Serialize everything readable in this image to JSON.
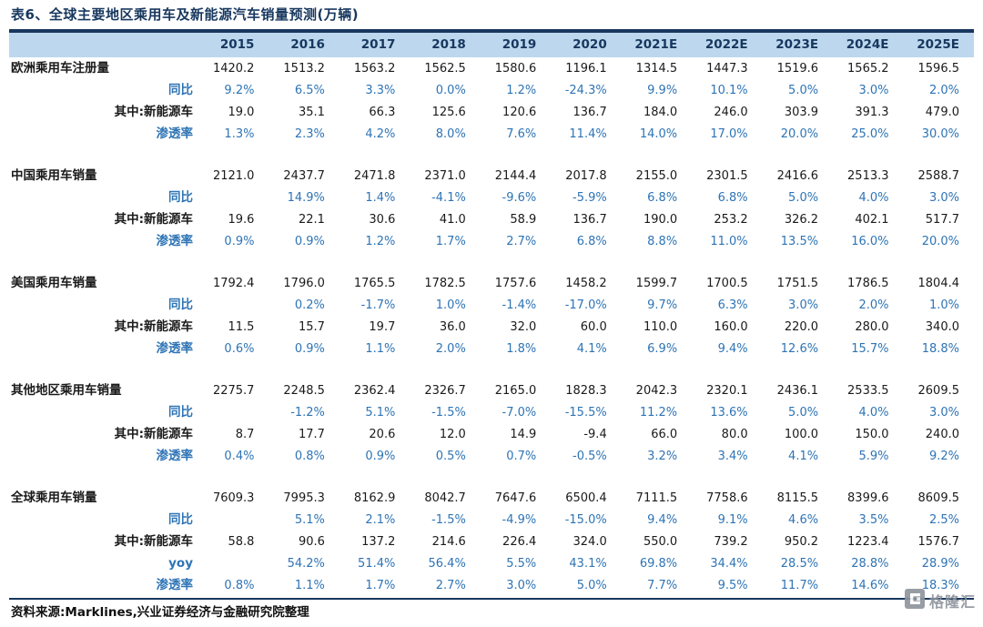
{
  "page": {
    "title": "表6、全球主要地区乘用车及新能源汽车销量预测(万辆)",
    "source_label": "资料来源:Marklines,兴业证券经济与金融研究院整理",
    "logo_text": "格隆汇"
  },
  "colors": {
    "navy": "#17375E",
    "header_bg": "#BDD7EE",
    "percent_blue": "#2E74B5",
    "logo_gray": "#8D939C"
  },
  "table": {
    "years": [
      "2015",
      "2016",
      "2017",
      "2018",
      "2019",
      "2020",
      "2021E",
      "2022E",
      "2023E",
      "2024E",
      "2025E"
    ],
    "groups": [
      {
        "rows": [
          {
            "label": "欧洲乘用车注册量",
            "style": "main",
            "values": [
              "1420.2",
              "1513.2",
              "1563.2",
              "1562.5",
              "1580.6",
              "1196.1",
              "1314.5",
              "1447.3",
              "1519.6",
              "1565.2",
              "1596.5"
            ]
          },
          {
            "label": "同比",
            "style": "pct",
            "values": [
              "9.2%",
              "6.5%",
              "3.3%",
              "0.0%",
              "1.2%",
              "-24.3%",
              "9.9%",
              "10.1%",
              "5.0%",
              "3.0%",
              "2.0%"
            ]
          },
          {
            "label": "其中:新能源车",
            "style": "sub",
            "values": [
              "19.0",
              "35.1",
              "66.3",
              "125.6",
              "120.6",
              "136.7",
              "184.0",
              "246.0",
              "303.9",
              "391.3",
              "479.0"
            ]
          },
          {
            "label": "渗透率",
            "style": "pct",
            "values": [
              "1.3%",
              "2.3%",
              "4.2%",
              "8.0%",
              "7.6%",
              "11.4%",
              "14.0%",
              "17.0%",
              "20.0%",
              "25.0%",
              "30.0%"
            ]
          }
        ]
      },
      {
        "rows": [
          {
            "label": "中国乘用车销量",
            "style": "main",
            "values": [
              "2121.0",
              "2437.7",
              "2471.8",
              "2371.0",
              "2144.4",
              "2017.8",
              "2155.0",
              "2301.5",
              "2416.6",
              "2513.3",
              "2588.7"
            ]
          },
          {
            "label": "同比",
            "style": "pct",
            "values": [
              "",
              "14.9%",
              "1.4%",
              "-4.1%",
              "-9.6%",
              "-5.9%",
              "6.8%",
              "6.8%",
              "5.0%",
              "4.0%",
              "3.0%"
            ]
          },
          {
            "label": "其中:新能源车",
            "style": "sub",
            "values": [
              "19.6",
              "22.1",
              "30.6",
              "41.0",
              "58.9",
              "136.7",
              "190.0",
              "253.2",
              "326.2",
              "402.1",
              "517.7"
            ]
          },
          {
            "label": "渗透率",
            "style": "pct",
            "values": [
              "0.9%",
              "0.9%",
              "1.2%",
              "1.7%",
              "2.7%",
              "6.8%",
              "8.8%",
              "11.0%",
              "13.5%",
              "16.0%",
              "20.0%"
            ]
          }
        ]
      },
      {
        "rows": [
          {
            "label": "美国乘用车销量",
            "style": "main",
            "values": [
              "1792.4",
              "1796.0",
              "1765.5",
              "1782.5",
              "1757.6",
              "1458.2",
              "1599.7",
              "1700.5",
              "1751.5",
              "1786.5",
              "1804.4"
            ]
          },
          {
            "label": "同比",
            "style": "pct",
            "values": [
              "",
              "0.2%",
              "-1.7%",
              "1.0%",
              "-1.4%",
              "-17.0%",
              "9.7%",
              "6.3%",
              "3.0%",
              "2.0%",
              "1.0%"
            ]
          },
          {
            "label": "其中:新能源车",
            "style": "sub",
            "values": [
              "11.5",
              "15.7",
              "19.7",
              "36.0",
              "32.0",
              "60.0",
              "110.0",
              "160.0",
              "220.0",
              "280.0",
              "340.0"
            ]
          },
          {
            "label": "渗透率",
            "style": "pct",
            "values": [
              "0.6%",
              "0.9%",
              "1.1%",
              "2.0%",
              "1.8%",
              "4.1%",
              "6.9%",
              "9.4%",
              "12.6%",
              "15.7%",
              "18.8%"
            ]
          }
        ]
      },
      {
        "rows": [
          {
            "label": "其他地区乘用车销量",
            "style": "main",
            "values": [
              "2275.7",
              "2248.5",
              "2362.4",
              "2326.7",
              "2165.0",
              "1828.3",
              "2042.3",
              "2320.1",
              "2436.1",
              "2533.5",
              "2609.5"
            ]
          },
          {
            "label": "同比",
            "style": "pct",
            "values": [
              "",
              "-1.2%",
              "5.1%",
              "-1.5%",
              "-7.0%",
              "-15.5%",
              "11.2%",
              "13.6%",
              "5.0%",
              "4.0%",
              "3.0%"
            ]
          },
          {
            "label": "其中:新能源车",
            "style": "sub",
            "values": [
              "8.7",
              "17.7",
              "20.6",
              "12.0",
              "14.9",
              "-9.4",
              "66.0",
              "80.0",
              "100.0",
              "150.0",
              "240.0"
            ]
          },
          {
            "label": "渗透率",
            "style": "pct",
            "values": [
              "0.4%",
              "0.8%",
              "0.9%",
              "0.5%",
              "0.7%",
              "-0.5%",
              "3.2%",
              "3.4%",
              "4.1%",
              "5.9%",
              "9.2%"
            ]
          }
        ]
      },
      {
        "rows": [
          {
            "label": "全球乘用车销量",
            "style": "main",
            "values": [
              "7609.3",
              "7995.3",
              "8162.9",
              "8042.7",
              "7647.6",
              "6500.4",
              "7111.5",
              "7758.6",
              "8115.5",
              "8399.6",
              "8609.5"
            ]
          },
          {
            "label": "同比",
            "style": "pct",
            "values": [
              "",
              "5.1%",
              "2.1%",
              "-1.5%",
              "-4.9%",
              "-15.0%",
              "9.4%",
              "9.1%",
              "4.6%",
              "3.5%",
              "2.5%"
            ]
          },
          {
            "label": "其中:新能源车",
            "style": "sub",
            "values": [
              "58.8",
              "90.6",
              "137.2",
              "214.6",
              "226.4",
              "324.0",
              "550.0",
              "739.2",
              "950.2",
              "1223.4",
              "1576.7"
            ]
          },
          {
            "label": "yoy",
            "style": "pct",
            "values": [
              "",
              "54.2%",
              "51.4%",
              "56.4%",
              "5.5%",
              "43.1%",
              "69.8%",
              "34.4%",
              "28.5%",
              "28.8%",
              "28.9%"
            ]
          },
          {
            "label": "渗透率",
            "style": "pct",
            "values": [
              "0.8%",
              "1.1%",
              "1.7%",
              "2.7%",
              "3.0%",
              "5.0%",
              "7.7%",
              "9.5%",
              "11.7%",
              "14.6%",
              "18.3%"
            ]
          }
        ]
      }
    ]
  }
}
